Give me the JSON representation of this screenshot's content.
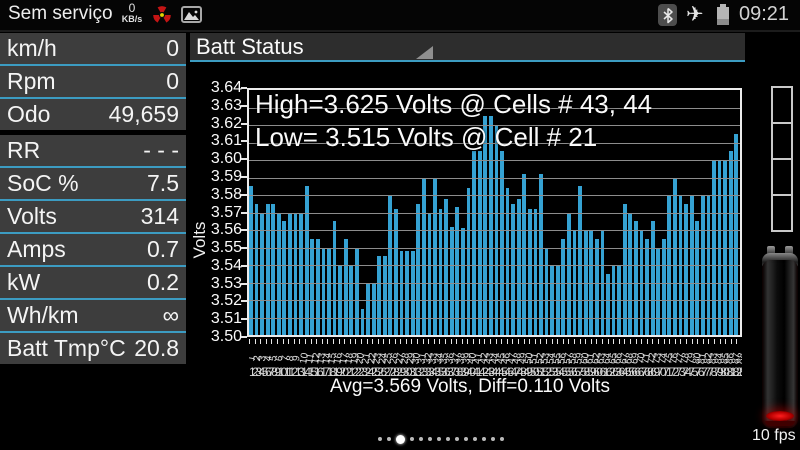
{
  "status_bar": {
    "carrier": "Sem serviço",
    "data_rate": {
      "value": "0",
      "unit": "KB/s"
    },
    "time": "09:21",
    "icons": [
      "radiation-icon",
      "gallery-icon",
      "bluetooth-icon",
      "airplane-mode-icon",
      "battery-icon"
    ]
  },
  "sidebar": {
    "rows": [
      {
        "label": "km/h",
        "value": "0"
      },
      {
        "label": "Rpm",
        "value": "0"
      },
      {
        "label": "Odo",
        "value": "49,659"
      },
      {
        "label": "RR",
        "value": "- - -"
      },
      {
        "label": "SoC %",
        "value": "7.5"
      },
      {
        "label": "Volts",
        "value": "314"
      },
      {
        "label": "Amps",
        "value": "0.7"
      },
      {
        "label": "kW",
        "value": "0.2"
      },
      {
        "label": "Wh/km",
        "value": "∞"
      },
      {
        "label": "Batt Tmp°C",
        "value": "20.8"
      }
    ]
  },
  "chart_header": {
    "title": "Batt Status"
  },
  "chart_data": {
    "type": "bar",
    "title": "Batt Status",
    "ylabel": "Volts",
    "ylim": [
      3.5,
      3.64
    ],
    "yticks": [
      "3.64",
      "3.63",
      "3.62",
      "3.61",
      "3.60",
      "3.59",
      "3.58",
      "3.57",
      "3.56",
      "3.55",
      "3.54",
      "3.53",
      "3.52",
      "3.51",
      "3.50"
    ],
    "grid": true,
    "bar_color": "#35a2d3",
    "x_meaning": "battery cell number 1-88",
    "values": [
      3.585,
      3.575,
      3.57,
      3.575,
      3.575,
      3.57,
      3.565,
      3.57,
      3.57,
      3.57,
      3.585,
      3.555,
      3.555,
      3.55,
      3.55,
      3.565,
      3.54,
      3.555,
      3.54,
      3.55,
      3.515,
      3.53,
      3.53,
      3.545,
      3.545,
      3.58,
      3.572,
      3.548,
      3.548,
      3.548,
      3.575,
      3.59,
      3.57,
      3.59,
      3.572,
      3.578,
      3.562,
      3.573,
      3.561,
      3.584,
      3.605,
      3.605,
      3.625,
      3.625,
      3.62,
      3.605,
      3.584,
      3.575,
      3.578,
      3.592,
      3.572,
      3.572,
      3.592,
      3.55,
      3.54,
      3.54,
      3.555,
      3.57,
      3.56,
      3.585,
      3.56,
      3.56,
      3.555,
      3.56,
      3.535,
      3.54,
      3.54,
      3.575,
      3.57,
      3.565,
      3.56,
      3.555,
      3.565,
      3.55,
      3.555,
      3.58,
      3.59,
      3.58,
      3.575,
      3.58,
      3.565,
      3.58,
      3.58,
      3.6,
      3.6,
      3.6,
      3.605,
      3.615
    ],
    "high": {
      "value": 3.625,
      "cells": [
        43,
        44
      ]
    },
    "low": {
      "value": 3.515,
      "cell": 21
    },
    "avg": 3.569,
    "diff": 0.11,
    "annotations": {
      "high": "High=3.625 Volts @ Cells # 43, 44",
      "low": "Low= 3.515 Volts @ Cell # 21",
      "footer": "Avg=3.569 Volts, Diff=0.110 Volts"
    }
  },
  "right_panel": {
    "segments": 4,
    "fps_label": "10 fps"
  },
  "page_indicator": {
    "count": 14,
    "active": 2
  }
}
